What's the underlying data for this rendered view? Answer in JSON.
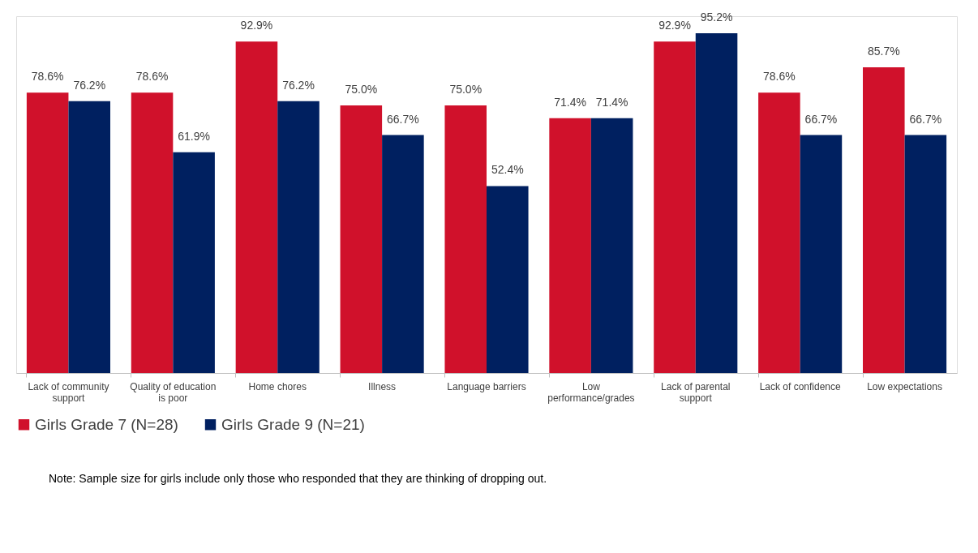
{
  "chart_data": {
    "type": "bar",
    "categories": [
      "Lack of community support",
      "Quality of education is poor",
      "Home chores",
      "Illness",
      "Language barriers",
      "Low performance/grades",
      "Lack of parental support",
      "Lack of confidence",
      "Low expectations"
    ],
    "series": [
      {
        "name": "Girls Grade 7 (N=28)",
        "color": "#d0112b",
        "values": [
          78.6,
          78.6,
          92.9,
          75.0,
          75.0,
          71.4,
          92.9,
          78.6,
          85.7
        ],
        "value_labels": [
          "78.6%",
          "78.6%",
          "92.9%",
          "75.0%",
          "75.0%",
          "71.4%",
          "92.9%",
          "78.6%",
          "85.7%"
        ]
      },
      {
        "name": "Girls Grade 9 (N=21)",
        "color": "#002060",
        "values": [
          76.2,
          61.9,
          76.2,
          66.7,
          52.4,
          71.4,
          95.2,
          66.7,
          66.7
        ],
        "value_labels": [
          "76.2%",
          "61.9%",
          "76.2%",
          "66.7%",
          "52.4%",
          "71.4%",
          "95.2%",
          "66.7%",
          "66.7%"
        ]
      }
    ],
    "legend": "bottom",
    "grid": false,
    "annotations": [
      "Note: Sample size for girls include only those who responded that they are thinking of dropping out."
    ]
  }
}
